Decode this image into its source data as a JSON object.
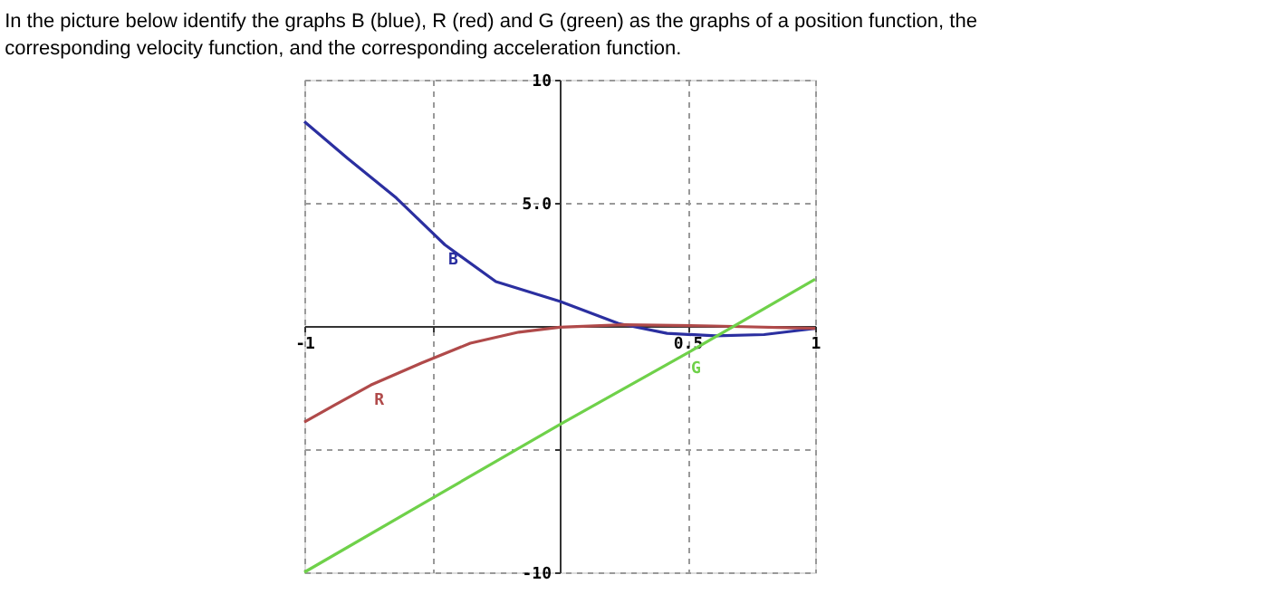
{
  "chart_data": {
    "type": "line",
    "title": "In the picture below identify the graphs B (blue), R (red) and G (green) as the graphs of a position function, the corresponding velocity function, and the corresponding acceleration function.",
    "series": [
      {
        "name": "B",
        "color": "#2b2fa0",
        "x": [
          -1,
          -0.83,
          -0.64,
          -0.45,
          -0.25,
          0,
          0.23,
          0.42,
          0.61,
          0.8,
          1
        ],
        "values": [
          8.3,
          6.8,
          5.2,
          3.3,
          1.8,
          1.0,
          0.1,
          -0.3,
          -0.4,
          -0.35,
          -0.1
        ]
      },
      {
        "name": "R",
        "color": "#b04a4a",
        "x": [
          -1,
          -0.88,
          -0.74,
          -0.54,
          -0.35,
          -0.16,
          0,
          0.25,
          0.6,
          1
        ],
        "values": [
          -3.9,
          -3.2,
          -2.4,
          -1.5,
          -0.7,
          -0.25,
          -0.05,
          0.05,
          0,
          -0.1
        ]
      },
      {
        "name": "G",
        "color": "#6fd14a",
        "x": [
          -1,
          -0.5,
          0,
          0.5,
          1
        ],
        "values": [
          -10,
          -7.0,
          -4.0,
          -1.1,
          1.9
        ]
      }
    ],
    "xlim": [
      -1,
      1
    ],
    "ylim": [
      -10,
      10
    ],
    "xticks": [
      {
        "value": -1,
        "label": "-1"
      },
      {
        "value": -0.5,
        "label": null
      },
      {
        "value": 0.5,
        "label": "0.5"
      },
      {
        "value": 1,
        "label": "1"
      }
    ],
    "yticks": [
      {
        "value": -10,
        "label": "-10"
      },
      {
        "value": -5,
        "label": null
      },
      {
        "value": 5,
        "label": "5.0"
      },
      {
        "value": 10,
        "label": "10"
      }
    ],
    "grid": true,
    "legend": false,
    "marker": "none",
    "line_style": "solid"
  }
}
